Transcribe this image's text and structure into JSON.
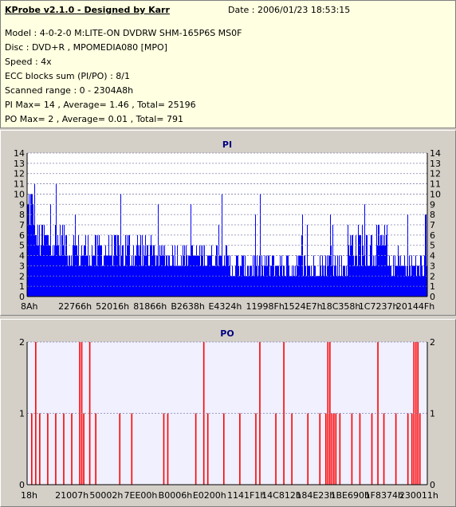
{
  "header": {
    "app_title": "KProbe v2.1.0 - Designed by Karr",
    "date": "Date : 2006/01/23 18:53:15",
    "model": "Model : 4-0-2-0 M:LITE-ON DVDRW SHM-165P6S MS0F",
    "disc": "Disc : DVD+R , MPOMEDIA080 [MPO]",
    "speed": "Speed : 4x",
    "ecc": "ECC blocks sum (PI/PO) : 8/1",
    "range": "Scanned range : 0 - 2304A8h",
    "pi_stats": "PI Max= 14 , Average= 1.46 , Total= 25196",
    "po_stats": "PO Max= 2 , Average= 0.01 , Total= 791"
  },
  "colors": {
    "pi_fill": "#0000ff",
    "po_fill": "#ff0000",
    "plot_bg": "#ffffff",
    "po_plot_bg": "#f0f0ff",
    "grid": "#8080b0"
  },
  "chart_data": [
    {
      "type": "bar",
      "title": "PI",
      "ylim": [
        0,
        14
      ],
      "y_ticks_left": [
        "0",
        "1",
        "2",
        "3",
        "4",
        "5",
        "6",
        "7",
        "8",
        "9",
        "10",
        "11",
        "12",
        "13",
        "14"
      ],
      "y_ticks_right": [
        "0",
        "1",
        "2",
        "3",
        "4",
        "5",
        "6",
        "7",
        "8",
        "9",
        "10",
        "11",
        "12",
        "13",
        "14"
      ],
      "x_tick_labels": [
        "8Ah",
        "22766h",
        "52016h",
        "81866h",
        "B2638h",
        "E4324h",
        "11998Fh",
        "1524E7h",
        "18C358h",
        "1C7237h",
        "20144Fh"
      ],
      "grid": true,
      "value_segments": [
        {
          "from": 0.0,
          "to": 0.02,
          "base": 7,
          "spread": 6
        },
        {
          "from": 0.02,
          "to": 0.1,
          "base": 5,
          "spread": 4
        },
        {
          "from": 0.1,
          "to": 0.3,
          "base": 4,
          "spread": 4
        },
        {
          "from": 0.3,
          "to": 0.5,
          "base": 4,
          "spread": 3
        },
        {
          "from": 0.5,
          "to": 0.8,
          "base": 3,
          "spread": 3
        },
        {
          "from": 0.8,
          "to": 0.9,
          "base": 4,
          "spread": 5
        },
        {
          "from": 0.9,
          "to": 1.0,
          "base": 3,
          "spread": 3
        }
      ]
    },
    {
      "type": "bar",
      "title": "PO",
      "ylim": [
        0,
        2
      ],
      "y_ticks_left": [
        "0",
        "1",
        "2"
      ],
      "y_ticks_right": [
        "0",
        "1",
        "2"
      ],
      "x_tick_labels": [
        "18h",
        "21007h",
        "50002h",
        "7EE00h",
        "B0006h",
        "E0200h",
        "1141F1h",
        "14C812h",
        "184E23h",
        "1BE690h",
        "1F8374h",
        "230011h"
      ],
      "grid": true,
      "spikes_value_2": [
        0.02,
        0.13,
        0.135,
        0.155,
        0.44,
        0.58,
        0.64,
        0.75,
        0.755,
        0.875,
        0.965,
        0.97,
        0.975
      ],
      "spikes_value_1": [
        0.01,
        0.03,
        0.05,
        0.07,
        0.09,
        0.11,
        0.14,
        0.17,
        0.23,
        0.26,
        0.34,
        0.35,
        0.42,
        0.45,
        0.49,
        0.53,
        0.57,
        0.62,
        0.66,
        0.7,
        0.73,
        0.745,
        0.75,
        0.76,
        0.765,
        0.77,
        0.78,
        0.81,
        0.83,
        0.86,
        0.89,
        0.92,
        0.95,
        0.96,
        0.98
      ]
    }
  ]
}
